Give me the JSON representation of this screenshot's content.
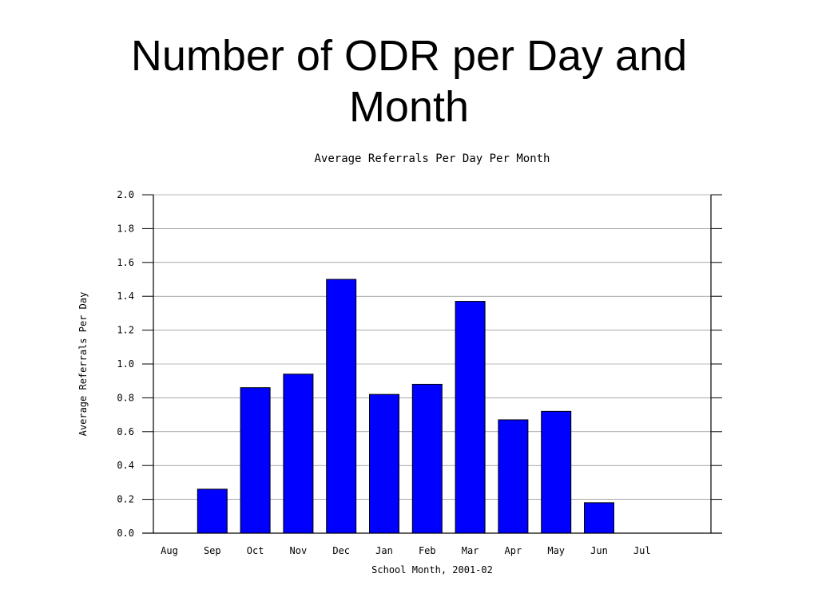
{
  "slide": {
    "title_line1": "Number of ODR per Day and",
    "title_line2": "Month"
  },
  "colors": {
    "bar_fill": "#0000ff",
    "bar_stroke": "#000000",
    "grid": "#000000",
    "background": "#ffffff"
  },
  "chart_data": {
    "type": "bar",
    "title": "Average Referrals Per Day Per Month",
    "xlabel": "School Month, 2001-02",
    "ylabel": "Average Referrals Per Day",
    "categories": [
      "Aug",
      "Sep",
      "Oct",
      "Nov",
      "Dec",
      "Jan",
      "Feb",
      "Mar",
      "Apr",
      "May",
      "Jun",
      "Jul"
    ],
    "values": [
      0,
      0.26,
      0.86,
      0.94,
      1.5,
      0.82,
      0.88,
      1.37,
      0.67,
      0.72,
      0.18,
      0
    ],
    "ylim": [
      0,
      2.0
    ],
    "yticks": [
      "0.0",
      "0.2",
      "0.4",
      "0.6",
      "0.8",
      "1.0",
      "1.2",
      "1.4",
      "1.6",
      "1.8",
      "2.0"
    ],
    "grid": true,
    "legend": "none"
  }
}
